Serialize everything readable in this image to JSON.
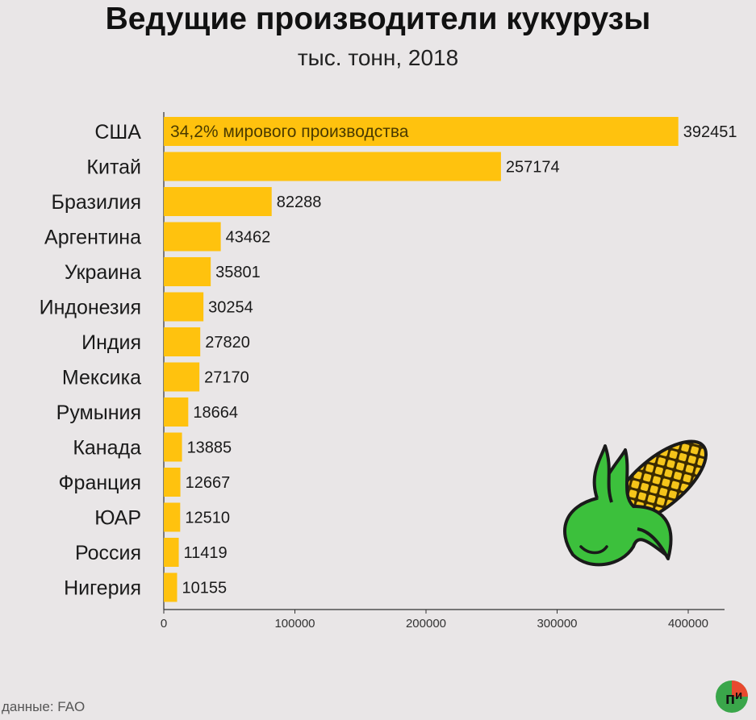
{
  "title": "Ведущие производители кукурузы",
  "subtitle": "тыс. тонн, 2018",
  "source": "данные: FAO",
  "logo_text": "П И",
  "colors": {
    "bar": "#ffc20e",
    "background": "#e9e6e7",
    "corn_husk": "#3cc03c",
    "corn_kernels": "#f5c51a"
  },
  "chart_data": {
    "type": "bar",
    "orientation": "horizontal",
    "categories": [
      "США",
      "Китай",
      "Бразилия",
      "Аргентина",
      "Украина",
      "Индонезия",
      "Индия",
      "Мексика",
      "Румыния",
      "Канада",
      "Франция",
      "ЮАР",
      "Россия",
      "Нигерия"
    ],
    "values": [
      392451,
      257174,
      82288,
      43462,
      35801,
      30254,
      27820,
      27170,
      18664,
      13885,
      12667,
      12510,
      11419,
      10155
    ],
    "value_labels": [
      "392451",
      "257174",
      "82288",
      "43462",
      "35801",
      "30254",
      "27820",
      "27170",
      "18664",
      "13885",
      "12667",
      "12510",
      "11419",
      "10155"
    ],
    "annotation": "34,2% мирового производства",
    "xlim": [
      0,
      430000
    ],
    "xticks": [
      0,
      100000,
      200000,
      300000,
      400000
    ],
    "xtick_labels": [
      "0",
      "100000",
      "200000",
      "300000",
      "400000"
    ],
    "grid": false
  }
}
